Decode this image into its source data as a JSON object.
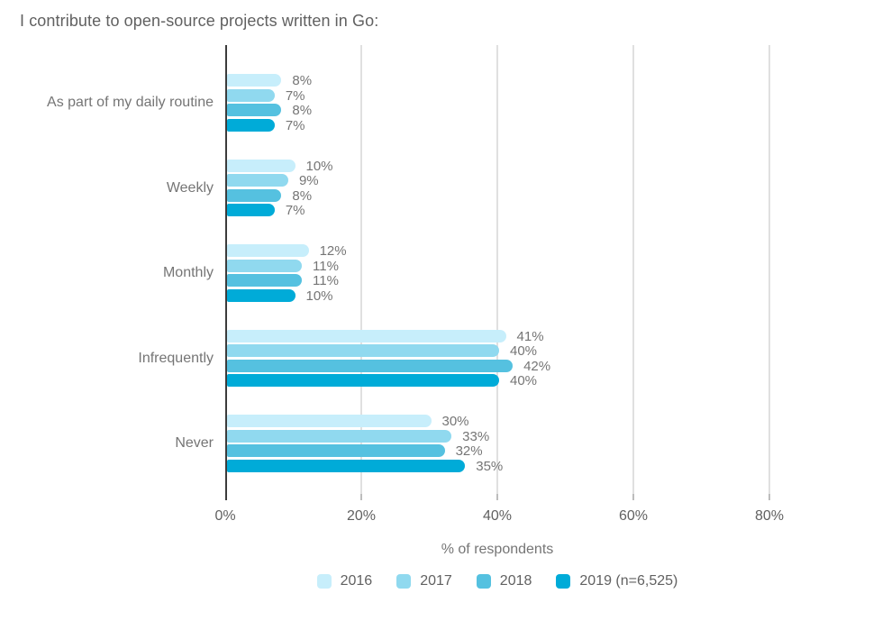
{
  "title": "I contribute to open-source projects written in Go:",
  "chart_data": {
    "type": "bar",
    "orientation": "horizontal",
    "title": "I contribute to open-source projects written in Go:",
    "categories": [
      "As part of my daily routine",
      "Weekly",
      "Monthly",
      "Infrequently",
      "Never"
    ],
    "series": [
      {
        "name": "2016",
        "color": "#c7eefb",
        "values": [
          8,
          10,
          12,
          41,
          30
        ]
      },
      {
        "name": "2017",
        "color": "#90d9ef",
        "values": [
          7,
          9,
          11,
          40,
          33
        ]
      },
      {
        "name": "2018",
        "color": "#55c1e0",
        "values": [
          8,
          8,
          11,
          42,
          32
        ]
      },
      {
        "name": "2019 (n=6,525)",
        "color": "#00abd8",
        "values": [
          7,
          7,
          10,
          40,
          35
        ]
      }
    ],
    "value_suffix": "%",
    "xlabel": "% of respondents",
    "x_ticks": [
      "0%",
      "20%",
      "40%",
      "60%",
      "80%"
    ],
    "x_tick_values": [
      0,
      20,
      40,
      60,
      80
    ],
    "xlim": [
      0,
      80
    ],
    "grid": true,
    "legend_position": "bottom"
  },
  "style": {
    "axis_color": "#3c3c3c",
    "gridline_color": "#e0e0e0",
    "title_color": "#616161",
    "label_color": "#757575",
    "background": "#ffffff"
  }
}
